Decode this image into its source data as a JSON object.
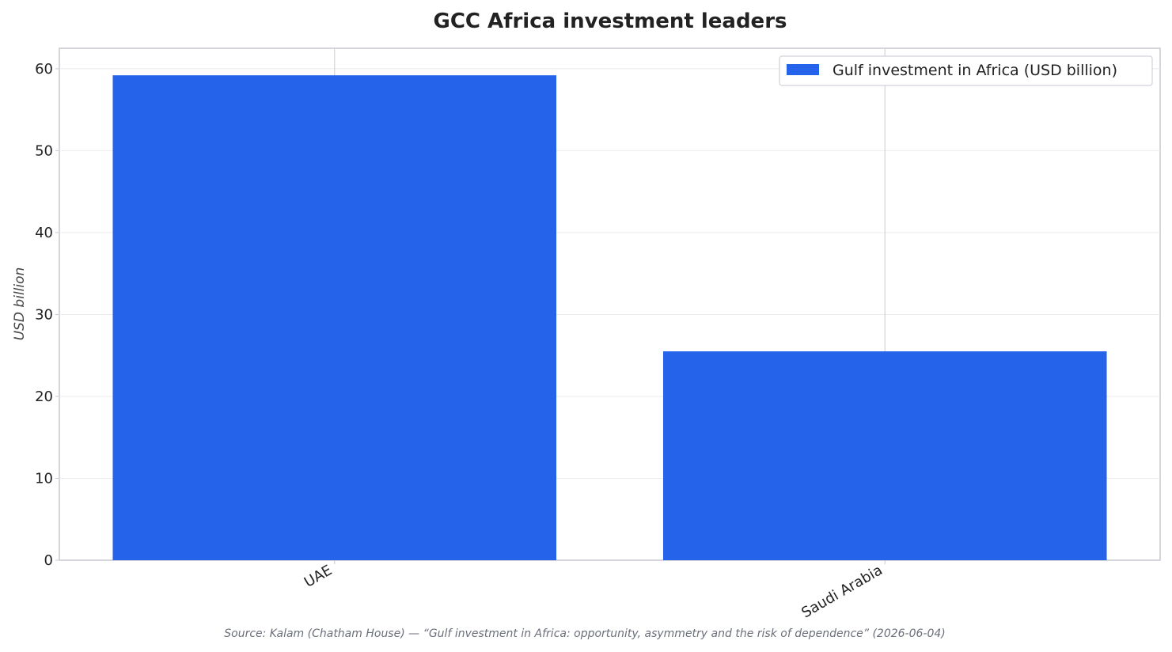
{
  "chart_data": {
    "type": "bar",
    "title": "GCC Africa investment leaders",
    "xlabel": "",
    "ylabel": "USD billion",
    "categories": [
      "UAE",
      "Saudi Arabia"
    ],
    "series": [
      {
        "name": "Gulf investment in Africa (USD billion)",
        "values": [
          59.2,
          25.5
        ],
        "color": "#2563eb"
      }
    ],
    "ylim": [
      0,
      62.5
    ],
    "yticks": [
      0,
      10,
      20,
      30,
      40,
      50,
      60
    ],
    "grid": true,
    "legend_position": "top-right",
    "source_note": "Source: Kalam (Chatham House) — “Gulf investment in Africa: opportunity, asymmetry and the risk of dependence” (2026-06-04)"
  }
}
